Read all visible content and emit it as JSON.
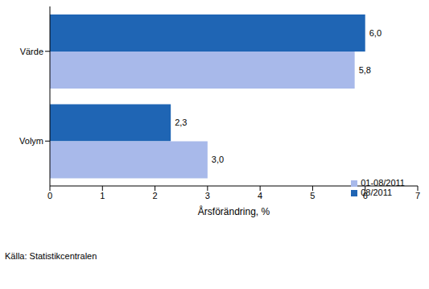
{
  "chart_data": {
    "type": "bar",
    "orientation": "horizontal",
    "categories": [
      "Värde",
      "Volym"
    ],
    "series": [
      {
        "name": "08/2011",
        "color": "#1f65b4",
        "values": [
          6.0,
          2.3
        ],
        "value_labels": [
          "6,0",
          "2,3"
        ]
      },
      {
        "name": "01-08/2011",
        "color": "#a8b9ea",
        "values": [
          5.8,
          3.0
        ],
        "value_labels": [
          "5,8",
          "3,0"
        ]
      }
    ],
    "xlabel": "Årsförändring, %",
    "xlim": [
      0,
      7
    ],
    "xticks": [
      0,
      1,
      2,
      3,
      4,
      5,
      6,
      7
    ],
    "grid": false,
    "legend": "lower right",
    "data_labels": true,
    "source": "Källa: Statistikcentralen"
  }
}
